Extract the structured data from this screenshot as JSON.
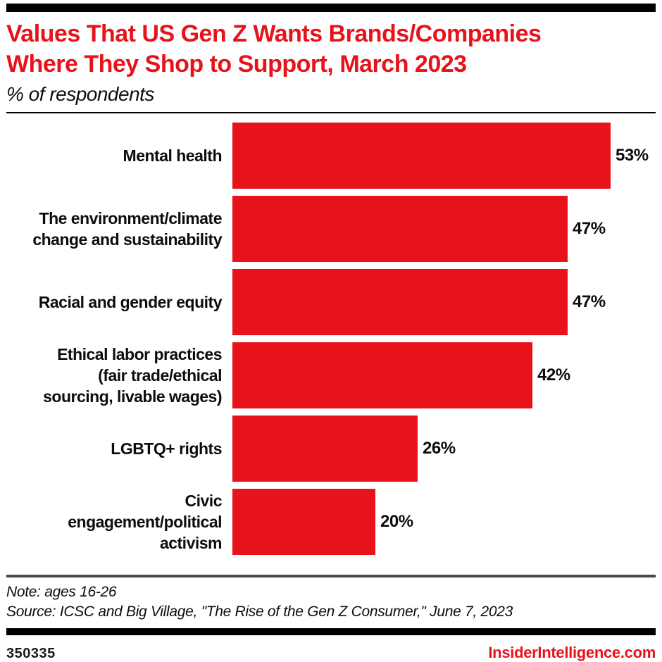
{
  "header": {
    "title": "Values That US Gen Z Wants Brands/Companies\nWhere They Shop to Support, March 2023",
    "subtitle": "% of respondents"
  },
  "chart": {
    "rows": [
      {
        "label": "Mental health",
        "label_wrapped": "Mental health",
        "value": 53,
        "value_label": "53%"
      },
      {
        "label": "The environment/climate change and sustainability",
        "label_wrapped": "The environment/climate\nchange and sustainability",
        "value": 47,
        "value_label": "47%"
      },
      {
        "label": "Racial and gender equity",
        "label_wrapped": "Racial and gender equity",
        "value": 47,
        "value_label": "47%"
      },
      {
        "label": "Ethical labor practices (fair trade/ethical sourcing, livable wages)",
        "label_wrapped": "Ethical labor practices\n(fair trade/ethical\nsourcing, livable wages)",
        "value": 42,
        "value_label": "42%"
      },
      {
        "label": "LGBTQ+ rights",
        "label_wrapped": "LGBTQ+ rights",
        "value": 26,
        "value_label": "26%"
      },
      {
        "label": "Civic engagement/political activism",
        "label_wrapped": "Civic\nengagement/political\nactivism",
        "value": 20,
        "value_label": "20%"
      }
    ]
  },
  "chart_data": {
    "type": "bar",
    "orientation": "horizontal",
    "title": "Values That US Gen Z Wants Brands/Companies Where They Shop to Support, March 2023",
    "subtitle": "% of respondents",
    "categories": [
      "Mental health",
      "The environment/climate change and sustainability",
      "Racial and gender equity",
      "Ethical labor practices (fair trade/ethical sourcing, livable wages)",
      "LGBTQ+ rights",
      "Civic engagement/political activism"
    ],
    "values": [
      53,
      47,
      47,
      42,
      26,
      20
    ],
    "value_labels": [
      "53%",
      "47%",
      "47%",
      "42%",
      "26%",
      "20%"
    ],
    "xlabel": "",
    "ylabel": "",
    "xlim": [
      0,
      59
    ],
    "grid": false,
    "legend": false,
    "data_labels": "outside-end",
    "bar_color": "#e8121b"
  },
  "footer": {
    "note": "Note: ages 16-26",
    "source": "Source: ICSC and Big Village, \"The Rise of the Gen Z Consumer,\" June 7, 2023",
    "chart_id": "350335",
    "site": "InsiderIntelligence.com"
  },
  "colors": {
    "accent_red": "#e8121b",
    "rule_black": "#000000",
    "rule_gray": "#4a4a4c",
    "text_black": "#0d0d0d"
  }
}
